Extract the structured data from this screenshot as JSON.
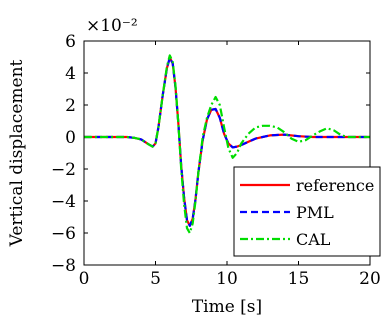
{
  "chart_data": {
    "type": "line",
    "title": "",
    "xlabel": "Time [s]",
    "ylabel": "Vertical displacement",
    "y_scale_label": "×10⁻²",
    "xlim": [
      0,
      20
    ],
    "ylim": [
      -8,
      6
    ],
    "x_ticks": [
      0,
      5,
      10,
      15,
      20
    ],
    "y_ticks": [
      -8,
      -6,
      -4,
      -2,
      0,
      2,
      4,
      6
    ],
    "x_tick_labels": [
      "0",
      "5",
      "10",
      "15",
      "20"
    ],
    "y_tick_labels": [
      "−8",
      "−6",
      "−4",
      "−2",
      "0",
      "2",
      "4",
      "6"
    ],
    "grid": false,
    "legend_position": "bottom-right",
    "series": [
      {
        "name": "reference",
        "color": "#ff0000",
        "dash": "solid",
        "x": [
          0,
          3,
          3.5,
          4,
          4.5,
          4.8,
          5.0,
          5.2,
          5.5,
          5.8,
          6.0,
          6.2,
          6.4,
          6.6,
          6.8,
          7.0,
          7.2,
          7.4,
          7.6,
          7.8,
          8.0,
          8.3,
          8.6,
          8.9,
          9.2,
          9.5,
          9.8,
          10.1,
          10.4,
          10.7,
          11.0,
          11.5,
          12.0,
          13.0,
          14.0,
          15.0,
          16.0,
          17.0,
          18.0,
          20.0
        ],
        "y": [
          0.0,
          0.0,
          -0.05,
          -0.15,
          -0.45,
          -0.6,
          -0.4,
          0.6,
          2.6,
          4.3,
          4.95,
          4.6,
          3.1,
          0.8,
          -1.8,
          -3.8,
          -5.2,
          -5.55,
          -5.1,
          -3.9,
          -2.2,
          -0.2,
          1.1,
          1.7,
          1.75,
          1.2,
          0.2,
          -0.4,
          -0.65,
          -0.6,
          -0.5,
          -0.3,
          -0.1,
          0.1,
          0.15,
          0.05,
          0.0,
          0.0,
          0.0,
          0.0
        ]
      },
      {
        "name": "PML",
        "color": "#0000ff",
        "dash": "dashed",
        "x": [
          0,
          3,
          3.5,
          4,
          4.5,
          4.8,
          5.0,
          5.2,
          5.5,
          5.8,
          6.0,
          6.2,
          6.4,
          6.6,
          6.8,
          7.0,
          7.2,
          7.4,
          7.6,
          7.8,
          8.0,
          8.3,
          8.6,
          8.9,
          9.2,
          9.5,
          9.8,
          10.1,
          10.4,
          10.7,
          11.0,
          11.5,
          12.0,
          13.0,
          14.0,
          15.0,
          16.0,
          17.0,
          18.0,
          20.0
        ],
        "y": [
          0.0,
          0.0,
          -0.05,
          -0.15,
          -0.45,
          -0.6,
          -0.4,
          0.6,
          2.6,
          4.3,
          4.95,
          4.6,
          3.1,
          0.8,
          -1.8,
          -3.8,
          -5.2,
          -5.55,
          -5.1,
          -3.9,
          -2.2,
          -0.2,
          1.1,
          1.7,
          1.75,
          1.2,
          0.2,
          -0.4,
          -0.65,
          -0.6,
          -0.5,
          -0.3,
          -0.1,
          0.1,
          0.15,
          0.05,
          0.0,
          0.0,
          0.0,
          0.0
        ]
      },
      {
        "name": "CAL",
        "color": "#00dd00",
        "dash": "dashdot",
        "x": [
          0,
          3,
          3.5,
          4,
          4.5,
          4.8,
          5.0,
          5.2,
          5.5,
          5.8,
          6.0,
          6.2,
          6.4,
          6.6,
          6.8,
          7.0,
          7.2,
          7.4,
          7.6,
          7.8,
          8.0,
          8.3,
          8.6,
          8.9,
          9.2,
          9.5,
          9.8,
          10.1,
          10.4,
          10.7,
          11.0,
          11.5,
          12.0,
          12.5,
          13.0,
          13.5,
          14.0,
          14.5,
          15.0,
          15.5,
          16.0,
          16.5,
          17.0,
          17.5,
          18.0,
          18.5,
          19.0,
          20.0
        ],
        "y": [
          0.0,
          0.0,
          -0.05,
          -0.15,
          -0.45,
          -0.6,
          -0.4,
          0.6,
          2.6,
          4.4,
          5.1,
          4.7,
          3.2,
          0.8,
          -2.0,
          -4.2,
          -5.7,
          -6.0,
          -5.4,
          -4.0,
          -2.2,
          0.0,
          1.2,
          2.0,
          2.5,
          2.0,
          0.6,
          -0.7,
          -1.3,
          -1.0,
          -0.4,
          0.2,
          0.6,
          0.7,
          0.7,
          0.6,
          0.3,
          -0.1,
          -0.3,
          -0.2,
          0.1,
          0.35,
          0.55,
          0.4,
          0.1,
          0.0,
          0.0,
          0.0
        ]
      }
    ]
  }
}
